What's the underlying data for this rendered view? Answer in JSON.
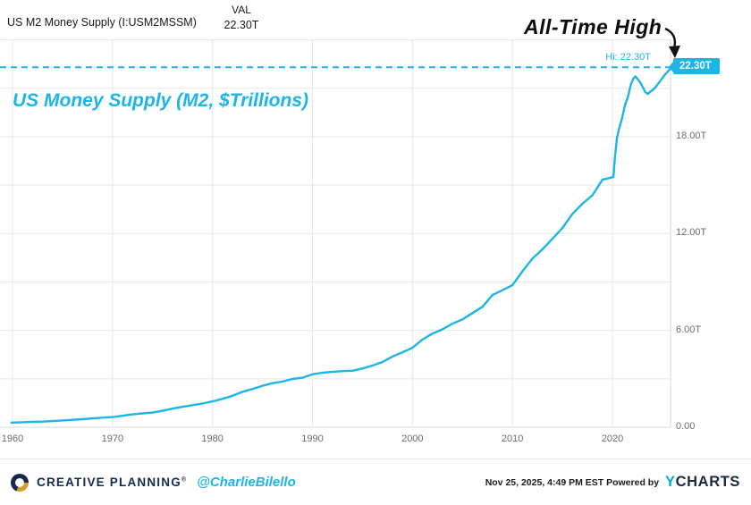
{
  "header": {
    "series_label": "US M2 Money Supply (I:USM2MSSM)",
    "val_column": "VAL",
    "val_value": "22.30T"
  },
  "annotations": {
    "all_time_high": "All-Time High",
    "chart_title": "US Money Supply (M2, $Trillions)",
    "hi_label": "Hi: 22.30T",
    "hi_badge": "22.30T"
  },
  "colors": {
    "accent": "#1cb5e8",
    "line": "#1cb5e8",
    "navy": "#16294e",
    "gridline": "#e7e7e7",
    "axis_line": "#d8d8d8"
  },
  "chart_data": {
    "type": "line",
    "title": "US Money Supply (M2, $Trillions)",
    "xlabel": "",
    "ylabel": "",
    "units": "trillions USD",
    "hi_value": 22.3,
    "x_range": [
      1959.9,
      2025.9
    ],
    "ylim": [
      0,
      24
    ],
    "grid": true,
    "legend": "none",
    "y_gridlines": [
      0,
      3,
      6,
      9,
      12,
      15,
      18,
      21,
      24
    ],
    "x_ticks": [
      {
        "year": 1960,
        "label": "1960"
      },
      {
        "year": 1970,
        "label": "1970"
      },
      {
        "year": 1980,
        "label": "1980"
      },
      {
        "year": 1990,
        "label": "1990"
      },
      {
        "year": 2000,
        "label": "2000"
      },
      {
        "year": 2010,
        "label": "2010"
      },
      {
        "year": 2020,
        "label": "2020"
      }
    ],
    "y_ticks": [
      {
        "value": 18,
        "label": "18.00T"
      },
      {
        "value": 12,
        "label": "12.00T"
      },
      {
        "value": 6,
        "label": "6.00T"
      },
      {
        "value": 0,
        "label": "0.00"
      }
    ],
    "series": [
      {
        "name": "US M2 Money Supply (I:USM2MSSM)",
        "color": "#1cb5e8",
        "points": [
          [
            1959.9,
            0.29
          ],
          [
            1961,
            0.31
          ],
          [
            1962,
            0.33
          ],
          [
            1963,
            0.35
          ],
          [
            1964,
            0.38
          ],
          [
            1965,
            0.42
          ],
          [
            1966,
            0.46
          ],
          [
            1967,
            0.5
          ],
          [
            1968,
            0.55
          ],
          [
            1969,
            0.59
          ],
          [
            1970,
            0.63
          ],
          [
            1971,
            0.71
          ],
          [
            1972,
            0.8
          ],
          [
            1973,
            0.86
          ],
          [
            1974,
            0.91
          ],
          [
            1975,
            1.02
          ],
          [
            1976,
            1.15
          ],
          [
            1977,
            1.27
          ],
          [
            1978,
            1.37
          ],
          [
            1979,
            1.47
          ],
          [
            1980,
            1.6
          ],
          [
            1981,
            1.76
          ],
          [
            1982,
            1.95
          ],
          [
            1983,
            2.19
          ],
          [
            1984,
            2.37
          ],
          [
            1985,
            2.57
          ],
          [
            1986,
            2.73
          ],
          [
            1987,
            2.83
          ],
          [
            1988,
            2.99
          ],
          [
            1989,
            3.07
          ],
          [
            1990,
            3.28
          ],
          [
            1991,
            3.38
          ],
          [
            1992,
            3.43
          ],
          [
            1993,
            3.48
          ],
          [
            1994,
            3.5
          ],
          [
            1995,
            3.64
          ],
          [
            1996,
            3.82
          ],
          [
            1997,
            4.04
          ],
          [
            1998,
            4.38
          ],
          [
            1999,
            4.64
          ],
          [
            2000,
            4.92
          ],
          [
            2001,
            5.43
          ],
          [
            2002,
            5.8
          ],
          [
            2003,
            6.07
          ],
          [
            2004,
            6.42
          ],
          [
            2005,
            6.68
          ],
          [
            2006,
            7.07
          ],
          [
            2007,
            7.46
          ],
          [
            2008,
            8.19
          ],
          [
            2009,
            8.49
          ],
          [
            2010,
            8.8
          ],
          [
            2011,
            9.65
          ],
          [
            2012,
            10.45
          ],
          [
            2013,
            11.02
          ],
          [
            2014,
            11.67
          ],
          [
            2015,
            12.34
          ],
          [
            2016,
            13.21
          ],
          [
            2017,
            13.85
          ],
          [
            2018,
            14.37
          ],
          [
            2019,
            15.33
          ],
          [
            2020.1,
            15.5
          ],
          [
            2020.25,
            16.7
          ],
          [
            2020.45,
            17.9
          ],
          [
            2020.65,
            18.45
          ],
          [
            2020.95,
            19.1
          ],
          [
            2021.25,
            19.95
          ],
          [
            2021.55,
            20.45
          ],
          [
            2021.85,
            21.25
          ],
          [
            2022.1,
            21.6
          ],
          [
            2022.3,
            21.74
          ],
          [
            2022.55,
            21.55
          ],
          [
            2022.8,
            21.35
          ],
          [
            2023.05,
            21.05
          ],
          [
            2023.3,
            20.75
          ],
          [
            2023.55,
            20.65
          ],
          [
            2023.8,
            20.8
          ],
          [
            2024.05,
            20.9
          ],
          [
            2024.3,
            21.05
          ],
          [
            2024.6,
            21.3
          ],
          [
            2024.9,
            21.55
          ],
          [
            2025.2,
            21.8
          ],
          [
            2025.5,
            22.0
          ],
          [
            2025.9,
            22.3
          ]
        ]
      }
    ]
  },
  "footer": {
    "brand": "CREATIVE PLANNING",
    "brand_reg": "®",
    "handle": "@CharlieBilello",
    "timestamp": "Nov 25, 2025, 4:49 PM EST",
    "powered_by": "Powered by",
    "ycharts_y": "Y",
    "ycharts_rest": "CHARTS"
  }
}
